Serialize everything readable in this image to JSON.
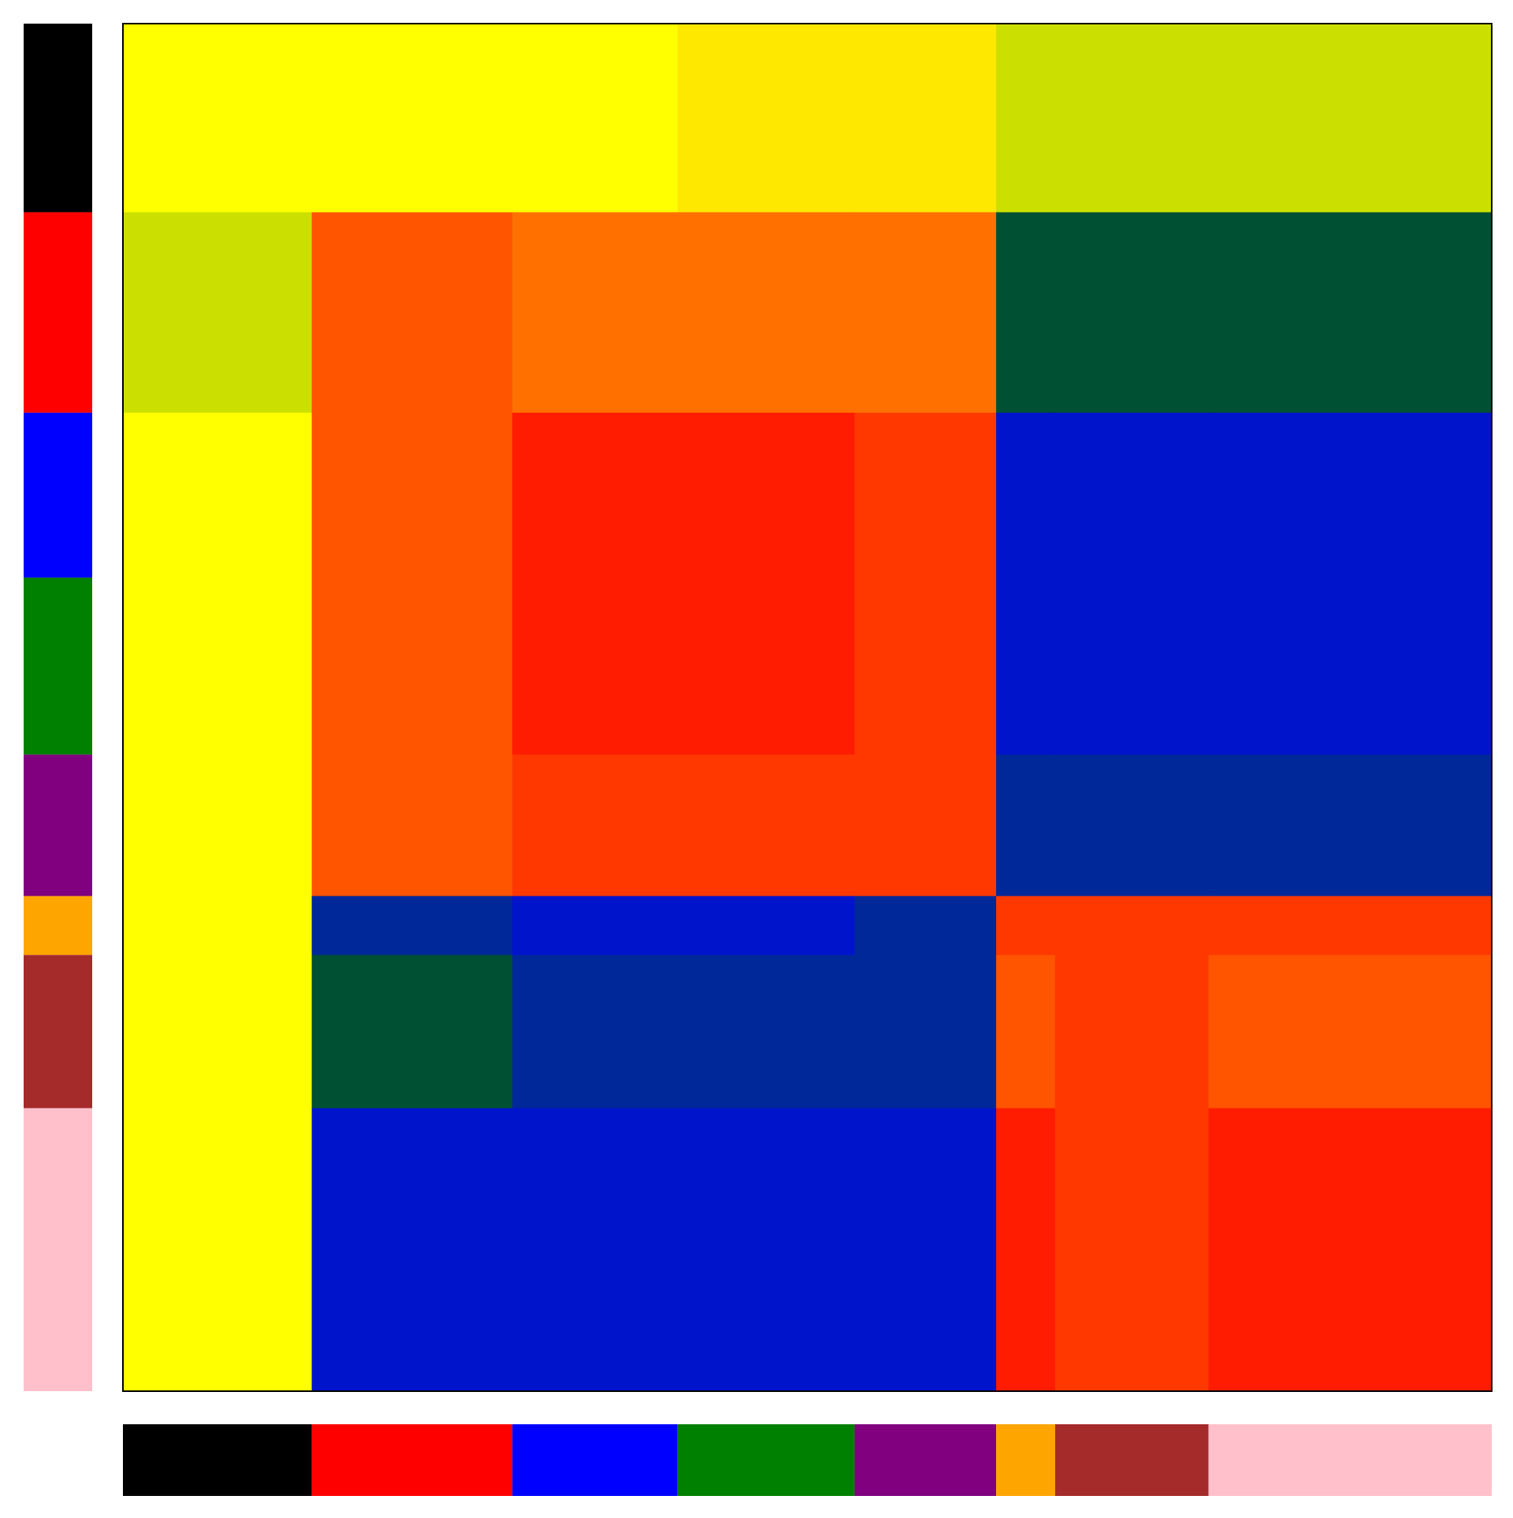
{
  "chart_data": {
    "type": "heatmap",
    "groups": [
      {
        "color": "#000000",
        "size": 16
      },
      {
        "color": "#ff0000",
        "size": 17
      },
      {
        "color": "#0000ff",
        "size": 14
      },
      {
        "color": "#008000",
        "size": 15
      },
      {
        "color": "#800080",
        "size": 12
      },
      {
        "color": "#ffa500",
        "size": 5
      },
      {
        "color": "#a52a2a",
        "size": 13
      },
      {
        "color": "#ffc0cb",
        "size": 24
      }
    ],
    "matrix": [
      [
        0.5,
        0.5,
        0.5,
        0.55,
        0.55,
        0.45,
        0.45,
        0.45
      ],
      [
        0.45,
        0.85,
        0.8,
        0.8,
        0.8,
        0.2,
        0.2,
        0.2
      ],
      [
        0.5,
        0.85,
        0.95,
        0.95,
        0.9,
        0.05,
        0.05,
        0.05
      ],
      [
        0.5,
        0.85,
        0.95,
        0.95,
        0.9,
        0.05,
        0.05,
        0.05
      ],
      [
        0.5,
        0.85,
        0.9,
        0.9,
        0.9,
        0.1,
        0.1,
        0.1
      ],
      [
        0.5,
        0.1,
        0.05,
        0.05,
        0.1,
        0.9,
        0.9,
        0.9
      ],
      [
        0.5,
        0.2,
        0.1,
        0.1,
        0.1,
        0.85,
        0.9,
        0.85
      ],
      [
        0.5,
        0.05,
        0.05,
        0.05,
        0.05,
        0.95,
        0.9,
        0.95
      ]
    ],
    "vlim": [
      0,
      1
    ],
    "colormap": [
      "#0000ff",
      "#006400",
      "#ffff00",
      "#ff8c00",
      "#ff0000"
    ]
  }
}
